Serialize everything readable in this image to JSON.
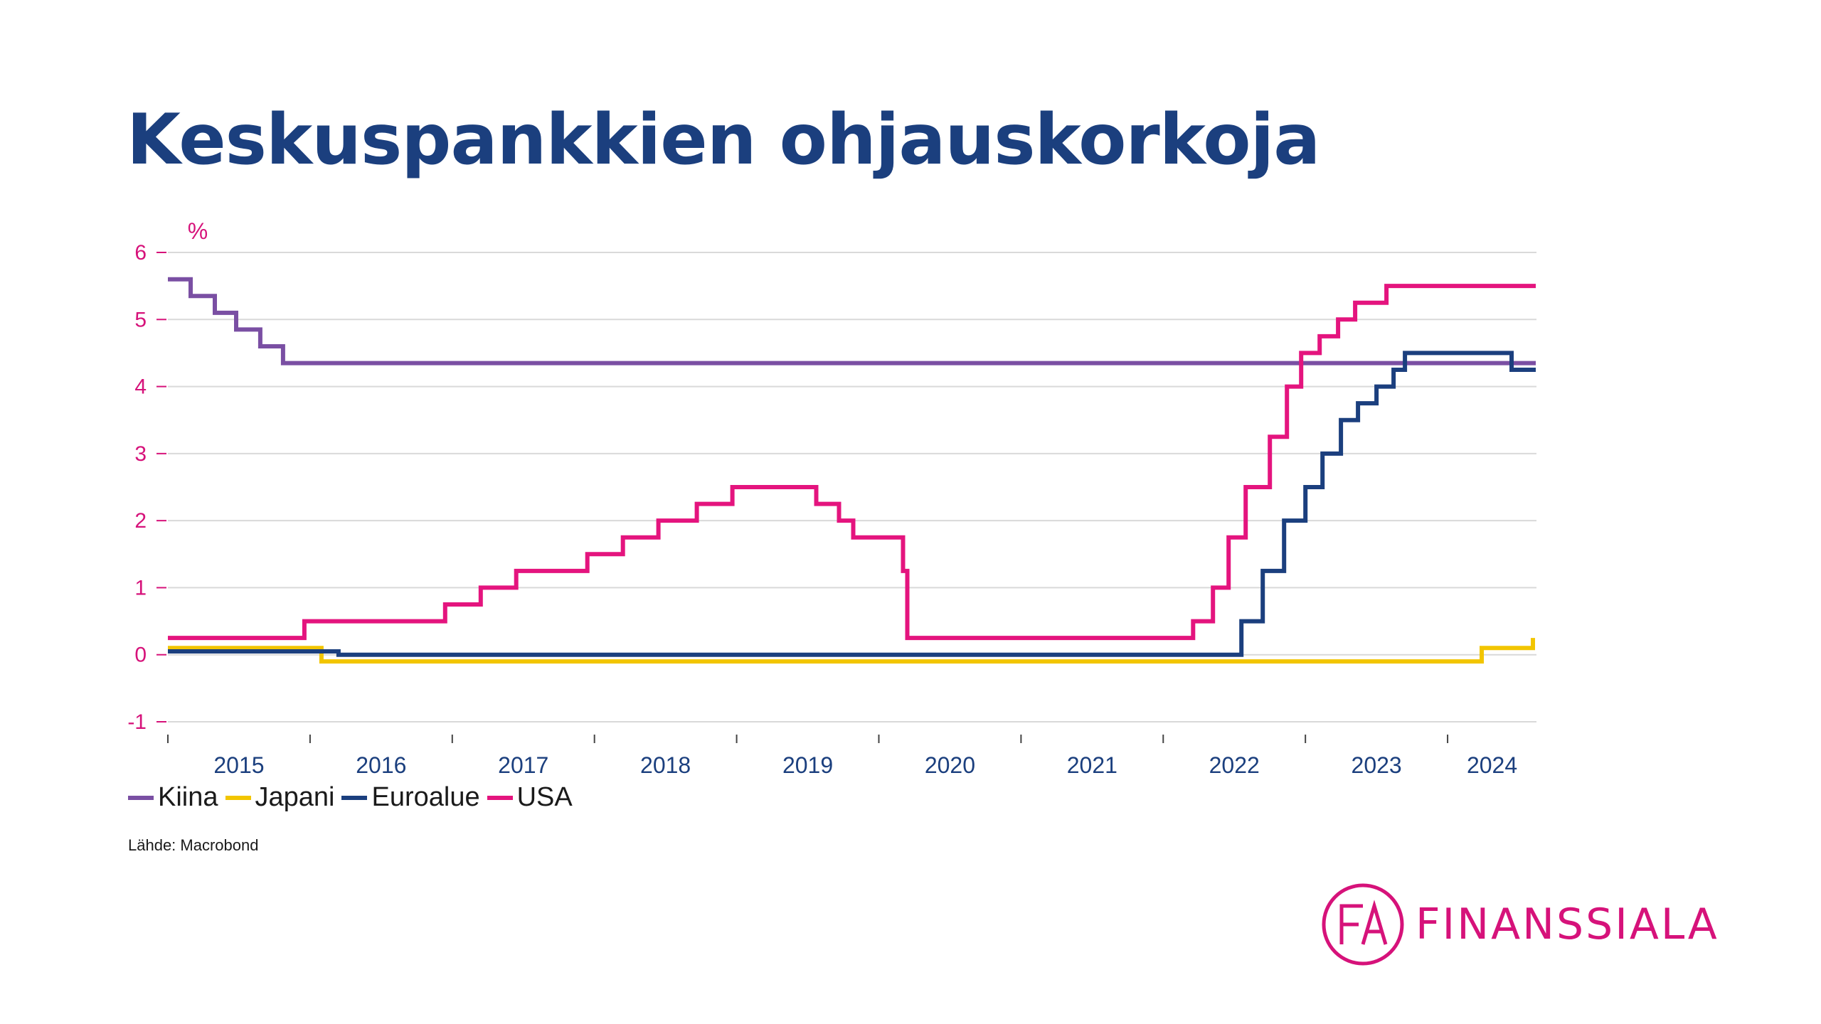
{
  "title": "Keskuspankkien ohjauskorkoja",
  "source": "Lähde: Macrobond",
  "logo": {
    "name": "FINANSSIALA",
    "mark": "FA",
    "color": "#d6127a"
  },
  "chart_data": {
    "type": "line",
    "ylabel": "%",
    "ylim": [
      -1,
      6
    ],
    "yticks": [
      -1,
      0,
      1,
      2,
      3,
      4,
      5,
      6
    ],
    "xlim": [
      2015.0,
      2024.625
    ],
    "xticks": [
      "2015",
      "2016",
      "2017",
      "2018",
      "2019",
      "2020",
      "2021",
      "2022",
      "2023",
      "2024"
    ],
    "grid": true,
    "step": true,
    "legend_position": "bottom-left",
    "series": [
      {
        "name": "Kiina",
        "color": "#7a4fa3",
        "points": [
          [
            2015.0,
            5.6
          ],
          [
            2015.16,
            5.35
          ],
          [
            2015.33,
            5.1
          ],
          [
            2015.48,
            4.85
          ],
          [
            2015.65,
            4.6
          ],
          [
            2015.81,
            4.35
          ],
          [
            2024.62,
            4.35
          ]
        ]
      },
      {
        "name": "Japani",
        "color": "#f2c500",
        "points": [
          [
            2015.0,
            0.1
          ],
          [
            2016.08,
            -0.1
          ],
          [
            2024.24,
            0.1
          ],
          [
            2024.6,
            0.25
          ]
        ]
      },
      {
        "name": "Euroalue",
        "color": "#1b3f7e",
        "points": [
          [
            2015.0,
            0.05
          ],
          [
            2016.2,
            0.0
          ],
          [
            2022.55,
            0.5
          ],
          [
            2022.7,
            1.25
          ],
          [
            2022.85,
            2.0
          ],
          [
            2023.0,
            2.5
          ],
          [
            2023.12,
            3.0
          ],
          [
            2023.25,
            3.5
          ],
          [
            2023.37,
            3.75
          ],
          [
            2023.5,
            4.0
          ],
          [
            2023.62,
            4.25
          ],
          [
            2023.7,
            4.5
          ],
          [
            2024.45,
            4.25
          ],
          [
            2024.62,
            4.25
          ]
        ]
      },
      {
        "name": "USA",
        "color": "#e4147e",
        "points": [
          [
            2015.0,
            0.25
          ],
          [
            2015.96,
            0.5
          ],
          [
            2016.95,
            0.75
          ],
          [
            2017.2,
            1.0
          ],
          [
            2017.45,
            1.25
          ],
          [
            2017.95,
            1.5
          ],
          [
            2018.2,
            1.75
          ],
          [
            2018.45,
            2.0
          ],
          [
            2018.72,
            2.25
          ],
          [
            2018.97,
            2.5
          ],
          [
            2019.56,
            2.25
          ],
          [
            2019.72,
            2.0
          ],
          [
            2019.82,
            1.75
          ],
          [
            2020.17,
            1.25
          ],
          [
            2020.2,
            0.25
          ],
          [
            2022.21,
            0.5
          ],
          [
            2022.35,
            1.0
          ],
          [
            2022.46,
            1.75
          ],
          [
            2022.58,
            2.5
          ],
          [
            2022.75,
            3.25
          ],
          [
            2022.87,
            4.0
          ],
          [
            2022.97,
            4.5
          ],
          [
            2023.1,
            4.75
          ],
          [
            2023.23,
            5.0
          ],
          [
            2023.35,
            5.25
          ],
          [
            2023.57,
            5.5
          ],
          [
            2024.62,
            5.5
          ]
        ]
      }
    ]
  }
}
